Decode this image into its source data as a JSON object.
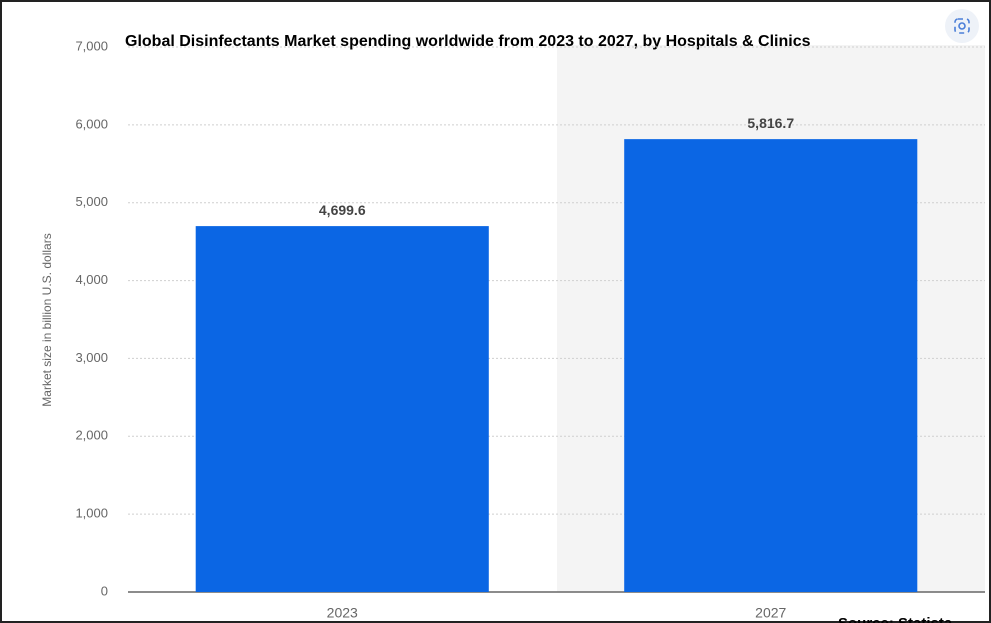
{
  "chart_data": {
    "type": "bar",
    "title": "Global Disinfectants Market spending worldwide from 2023 to 2027, by Hospitals & Clinics",
    "y_label": "Market size in billion U.S. dollars",
    "source": "Source: Statista",
    "categories": [
      "2023",
      "2027"
    ],
    "values": [
      4699.6,
      5816.7
    ],
    "value_labels": [
      "4,699.6",
      "5,816.7"
    ],
    "color": "#0b66e4",
    "ylim": [
      0,
      7000
    ],
    "yticks": [
      0,
      {
        "value": 1000,
        "label": "1,000"
      },
      {
        "value": 2000,
        "label": "2,000"
      },
      {
        "value": 3000,
        "label": "3,000"
      },
      {
        "value": 4000,
        "label": "4,000"
      },
      {
        "value": 5000,
        "label": "5,000"
      },
      {
        "value": 6000,
        "label": "6,000"
      },
      {
        "value": 7000,
        "label": "7,000"
      }
    ],
    "grid": true
  }
}
